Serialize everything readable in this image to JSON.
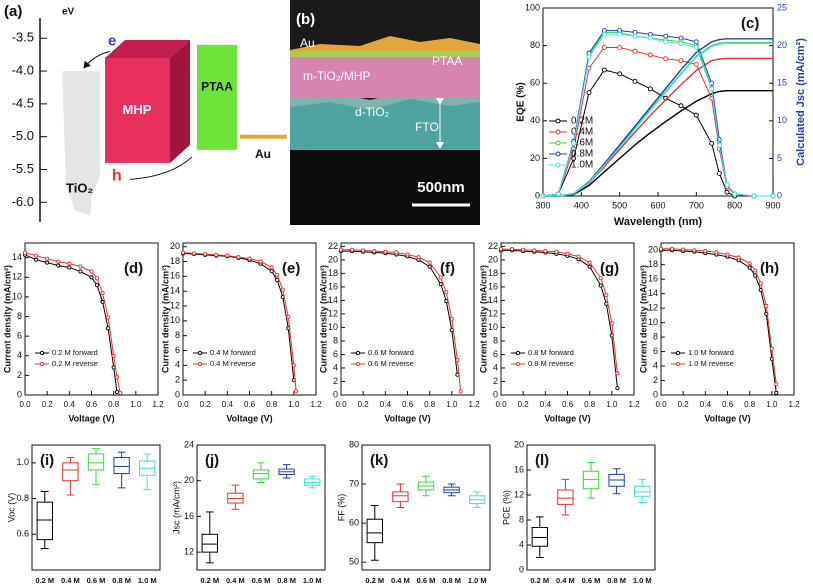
{
  "panel_a": {
    "label": "(a)",
    "unit": "eV",
    "ylim": [
      -6.3,
      -3.1
    ],
    "yticks": [
      -3.5,
      {
        "value": -4,
        "label": "-4.0"
      },
      -4.5,
      {
        "value": -5,
        "label": "-5.0"
      },
      -5.5,
      {
        "value": -6,
        "label": "-6.0"
      }
    ],
    "tio2": {
      "name": "TiO₂",
      "top": -4.0,
      "bottom": -6.2
    },
    "mhp": {
      "name": "MHP",
      "top": -3.8,
      "bottom": -5.4
    },
    "ptaa": {
      "name": "PTAA",
      "top": -3.6,
      "bottom": -5.2
    },
    "au": {
      "name": "Au",
      "level": -5.0
    },
    "electron": "e",
    "hole": "h"
  },
  "panel_b": {
    "label": "(b)",
    "layers": [
      "Au",
      "PTAA",
      "m-TiO₂/MHP",
      "d-TiO₂",
      "FTO"
    ],
    "scale_bar": "500nm"
  },
  "chart_data": [
    {
      "type": "line",
      "label": "(c)",
      "xlabel": "Wavelength (nm)",
      "ylabel": "EQE (%)",
      "y2label": "Calculated Jsc (mA/cm²)",
      "x": [
        300,
        340,
        380,
        420,
        460,
        500,
        540,
        580,
        620,
        660,
        700,
        740,
        760,
        780,
        800,
        850,
        900
      ],
      "xlim": [
        300,
        900
      ],
      "xticks": [
        300,
        400,
        500,
        600,
        700,
        800,
        900
      ],
      "ylim": [
        0,
        100
      ],
      "yticks": [
        0,
        20,
        40,
        60,
        80,
        100
      ],
      "y2lim": [
        0,
        25
      ],
      "y2ticks": [
        0,
        5,
        10,
        15,
        20,
        25
      ],
      "legend": "left",
      "series": [
        {
          "name": "0.2M",
          "color": "#000000",
          "values": [
            0,
            1,
            20,
            55,
            67,
            65,
            61,
            57,
            52,
            48,
            43,
            28,
            12,
            2,
            0,
            0,
            0
          ]
        },
        {
          "name": "0.4M",
          "color": "#e8312f",
          "values": [
            0,
            1,
            25,
            68,
            79,
            79,
            77,
            75,
            73,
            72,
            70,
            52,
            25,
            5,
            1,
            0,
            0
          ]
        },
        {
          "name": "0.6M",
          "color": "#3fd13f",
          "values": [
            0,
            1,
            28,
            75,
            87,
            87,
            85,
            84,
            83,
            82,
            80,
            58,
            28,
            6,
            1,
            0,
            0
          ]
        },
        {
          "name": "0.8M",
          "color": "#1f3fb0",
          "values": [
            0,
            1,
            29,
            76,
            88,
            88,
            87,
            86,
            85,
            84,
            82,
            60,
            30,
            6,
            1,
            0,
            0
          ]
        },
        {
          "name": "1.0M",
          "color": "#3fe0e0",
          "values": [
            0,
            1,
            28,
            74,
            86,
            86,
            85,
            84,
            82,
            81,
            79,
            57,
            27,
            6,
            1,
            0,
            0
          ]
        }
      ],
      "jsc_series": [
        {
          "axis": "y2",
          "values": [
            0,
            0,
            0.2,
            1.4,
            3.2,
            5.0,
            6.8,
            8.4,
            9.9,
            11.3,
            12.6,
            13.6,
            13.9,
            14.0,
            14.0,
            14.0,
            14.0
          ]
        },
        {
          "axis": "y2",
          "values": [
            0,
            0,
            0.3,
            1.7,
            3.9,
            6.2,
            8.5,
            10.7,
            12.8,
            14.8,
            16.7,
            18.0,
            18.2,
            18.3,
            18.3,
            18.3,
            18.3
          ]
        },
        {
          "axis": "y2",
          "values": [
            0,
            0,
            0.3,
            1.8,
            4.1,
            6.6,
            9.0,
            11.5,
            13.9,
            16.3,
            18.6,
            20.0,
            20.3,
            20.4,
            20.4,
            20.4,
            20.4
          ]
        },
        {
          "axis": "y2",
          "values": [
            0,
            0,
            0.3,
            1.9,
            4.3,
            6.8,
            9.3,
            11.8,
            14.3,
            16.8,
            19.1,
            20.5,
            20.8,
            20.9,
            20.9,
            20.9,
            20.9
          ]
        },
        {
          "axis": "y2",
          "values": [
            0,
            0,
            0.3,
            1.8,
            4.1,
            6.5,
            8.9,
            11.4,
            13.8,
            16.2,
            18.5,
            19.9,
            20.2,
            20.3,
            20.3,
            20.3,
            20.3
          ]
        }
      ]
    },
    {
      "type": "jv",
      "label": "(d)",
      "xlabel": "Voltage (V)",
      "ylabel": "Current density (mA/cm²)",
      "x": [
        0,
        0.1,
        0.2,
        0.3,
        0.4,
        0.5,
        0.6,
        0.65,
        0.7,
        0.75,
        0.8,
        0.83,
        0.86
      ],
      "xlim": [
        0,
        1.2
      ],
      "xticks": [
        {
          "value": 0,
          "label": "0.0"
        },
        0.2,
        0.4,
        0.6,
        0.8,
        {
          "value": 1,
          "label": "1.0"
        },
        1.2
      ],
      "ylim": [
        0,
        15.5
      ],
      "yticks": [
        0,
        2,
        4,
        6,
        8,
        10,
        12,
        14
      ],
      "series": [
        {
          "name": "0.2 M forward",
          "color": "#000000",
          "values": [
            14.3,
            13.8,
            13.5,
            13.2,
            13.0,
            12.6,
            12.0,
            11.2,
            9.5,
            6.8,
            2.8,
            0.3,
            null
          ]
        },
        {
          "name": "0.2 M reverse",
          "color": "#e8312f",
          "values": [
            14.5,
            14.2,
            13.9,
            13.6,
            13.4,
            13.1,
            12.6,
            11.9,
            10.4,
            7.9,
            4.0,
            1.8,
            0.2
          ]
        }
      ]
    },
    {
      "type": "jv",
      "label": "(e)",
      "xlabel": "Voltage (V)",
      "ylabel": "Current density (mA/cm²)",
      "x": [
        0,
        0.1,
        0.2,
        0.3,
        0.4,
        0.5,
        0.6,
        0.7,
        0.8,
        0.85,
        0.9,
        0.95,
        1.0,
        1.02
      ],
      "xlim": [
        0,
        1.2
      ],
      "xticks": [
        {
          "value": 0,
          "label": "0.0"
        },
        0.2,
        0.4,
        0.6,
        0.8,
        {
          "value": 1,
          "label": "1.0"
        },
        1.2
      ],
      "ylim": [
        0,
        20.5
      ],
      "yticks": [
        0,
        2,
        4,
        6,
        8,
        10,
        12,
        14,
        16,
        18,
        20
      ],
      "series": [
        {
          "name": "0.4 M forward",
          "color": "#000000",
          "values": [
            19.1,
            19.0,
            18.9,
            18.8,
            18.7,
            18.5,
            18.2,
            17.7,
            16.7,
            15.5,
            13.2,
            9.0,
            2.0,
            null
          ]
        },
        {
          "name": "0.4 M reverse",
          "color": "#e8312f",
          "values": [
            19.2,
            19.1,
            19.0,
            18.9,
            18.8,
            18.6,
            18.4,
            18.0,
            17.2,
            16.2,
            14.2,
            10.5,
            4.0,
            0.5
          ]
        }
      ]
    },
    {
      "type": "jv",
      "label": "(f)",
      "xlabel": "Voltage (V)",
      "ylabel": "Current density (mA/cm²)",
      "x": [
        0,
        0.1,
        0.2,
        0.3,
        0.4,
        0.5,
        0.6,
        0.7,
        0.8,
        0.9,
        0.95,
        1.0,
        1.05,
        1.08
      ],
      "xlim": [
        0,
        1.2
      ],
      "xticks": [
        {
          "value": 0,
          "label": "0.0"
        },
        0.2,
        0.4,
        0.6,
        0.8,
        {
          "value": 1,
          "label": "1.0"
        },
        1.2
      ],
      "ylim": [
        0,
        22.5
      ],
      "yticks": [
        0,
        2,
        4,
        6,
        8,
        10,
        12,
        14,
        16,
        18,
        20,
        22
      ],
      "series": [
        {
          "name": "0.6 M forward",
          "color": "#000000",
          "values": [
            21.3,
            21.3,
            21.2,
            21.1,
            21.0,
            20.8,
            20.5,
            20.0,
            19.0,
            16.4,
            13.9,
            9.6,
            3.0,
            null
          ]
        },
        {
          "name": "0.6 M reverse",
          "color": "#e8312f",
          "values": [
            21.5,
            21.5,
            21.4,
            21.3,
            21.2,
            21.1,
            20.8,
            20.4,
            19.6,
            17.4,
            15.2,
            11.3,
            5.2,
            0.5
          ]
        }
      ]
    },
    {
      "type": "jv",
      "label": "(g)",
      "xlabel": "Voltage (V)",
      "ylabel": "Current density (mA/cm²)",
      "x": [
        0,
        0.1,
        0.2,
        0.3,
        0.4,
        0.5,
        0.6,
        0.7,
        0.8,
        0.9,
        0.95,
        1.0,
        1.05,
        1.08
      ],
      "xlim": [
        0,
        1.2
      ],
      "xticks": [
        {
          "value": 0,
          "label": "0.0"
        },
        0.2,
        0.4,
        0.6,
        0.8,
        {
          "value": 1,
          "label": "1.0"
        },
        1.2
      ],
      "ylim": [
        0,
        22.5
      ],
      "yticks": [
        0,
        2,
        4,
        6,
        8,
        10,
        12,
        14,
        16,
        18,
        20,
        22
      ],
      "series": [
        {
          "name": "0.8 M forward",
          "color": "#000000",
          "values": [
            21.4,
            21.4,
            21.3,
            21.2,
            21.1,
            20.9,
            20.6,
            20.1,
            19.0,
            16.2,
            13.5,
            8.8,
            1.0,
            null
          ]
        },
        {
          "name": "0.8 M reverse",
          "color": "#e8312f",
          "values": [
            21.6,
            21.6,
            21.5,
            21.4,
            21.3,
            21.2,
            20.9,
            20.5,
            19.6,
            17.3,
            14.8,
            10.6,
            3.2,
            null
          ]
        }
      ]
    },
    {
      "type": "jv",
      "label": "(h)",
      "xlabel": "Voltage (V)",
      "ylabel": "Current density (mA/cm²)",
      "x": [
        0,
        0.1,
        0.2,
        0.3,
        0.4,
        0.5,
        0.6,
        0.7,
        0.8,
        0.85,
        0.9,
        0.95,
        1.0,
        1.04
      ],
      "xlim": [
        0,
        1.2
      ],
      "xticks": [
        {
          "value": 0,
          "label": "0.0"
        },
        0.2,
        0.4,
        0.6,
        0.8,
        {
          "value": 1,
          "label": "1.0"
        },
        1.2
      ],
      "ylim": [
        0,
        21
      ],
      "yticks": [
        0,
        2,
        4,
        6,
        8,
        10,
        12,
        14,
        16,
        18,
        20
      ],
      "series": [
        {
          "name": "1.0 M forward",
          "color": "#000000",
          "values": [
            20.0,
            20.0,
            19.9,
            19.8,
            19.6,
            19.4,
            19.1,
            18.6,
            17.6,
            16.5,
            14.5,
            11.2,
            5.0,
            0.3
          ]
        },
        {
          "name": "1.0 M reverse",
          "color": "#e8312f",
          "values": [
            20.2,
            20.2,
            20.1,
            20.0,
            19.9,
            19.7,
            19.4,
            19.0,
            18.2,
            17.2,
            15.4,
            12.3,
            6.4,
            1.5
          ]
        }
      ]
    },
    {
      "type": "box",
      "label": "(i)",
      "ylabel": "Voc (V)",
      "categories": [
        "0.2 M",
        "0.4 M",
        "0.6 M",
        "0.8 M",
        "1.0 M"
      ],
      "colors": [
        "#000000",
        "#e8312f",
        "#3fd13f",
        "#1f3fb0",
        "#3fe0e0"
      ],
      "ylim": [
        0.4,
        1.1
      ],
      "yticks": [
        0.6,
        0.8,
        {
          "value": 1,
          "label": "1.0"
        }
      ],
      "boxes": [
        {
          "whisker_low": 0.52,
          "q1": 0.57,
          "median": 0.68,
          "q3": 0.78,
          "whisker_high": 0.84
        },
        {
          "whisker_low": 0.82,
          "q1": 0.9,
          "median": 0.96,
          "q3": 1.0,
          "whisker_high": 1.03
        },
        {
          "whisker_low": 0.88,
          "q1": 0.96,
          "median": 1.0,
          "q3": 1.05,
          "whisker_high": 1.08
        },
        {
          "whisker_low": 0.86,
          "q1": 0.94,
          "median": 0.98,
          "q3": 1.03,
          "whisker_high": 1.06
        },
        {
          "whisker_low": 0.85,
          "q1": 0.93,
          "median": 0.97,
          "q3": 1.01,
          "whisker_high": 1.05
        }
      ]
    },
    {
      "type": "box",
      "label": "(j)",
      "ylabel": "Jsc (mA/cm²)",
      "categories": [
        "0.2 M",
        "0.4 M",
        "0.6 M",
        "0.8 M",
        "1.0 M"
      ],
      "colors": [
        "#000000",
        "#e8312f",
        "#3fd13f",
        "#1f3fb0",
        "#3fe0e0"
      ],
      "ylim": [
        10,
        24
      ],
      "yticks": [
        12,
        16,
        20,
        24
      ],
      "boxes": [
        {
          "whisker_low": 10.8,
          "q1": 12.0,
          "median": 12.9,
          "q3": 14.0,
          "whisker_high": 16.5
        },
        {
          "whisker_low": 16.8,
          "q1": 17.5,
          "median": 18.0,
          "q3": 18.6,
          "whisker_high": 19.5
        },
        {
          "whisker_low": 19.8,
          "q1": 20.2,
          "median": 20.8,
          "q3": 21.2,
          "whisker_high": 22.0
        },
        {
          "whisker_low": 20.3,
          "q1": 20.7,
          "median": 21.0,
          "q3": 21.3,
          "whisker_high": 21.8
        },
        {
          "whisker_low": 19.2,
          "q1": 19.5,
          "median": 19.8,
          "q3": 20.2,
          "whisker_high": 20.5
        }
      ]
    },
    {
      "type": "box",
      "label": "(k)",
      "ylabel": "FF (%)",
      "categories": [
        "0.2 M",
        "0.4 M",
        "0.6 M",
        "0.8 M",
        "1.0 M"
      ],
      "colors": [
        "#000000",
        "#e8312f",
        "#3fd13f",
        "#1f3fb0",
        "#3fe0e0"
      ],
      "ylim": [
        48,
        80
      ],
      "yticks": [
        50,
        60,
        70,
        80
      ],
      "boxes": [
        {
          "whisker_low": 50.5,
          "q1": 55,
          "median": 57.5,
          "q3": 61,
          "whisker_high": 64.5
        },
        {
          "whisker_low": 64,
          "q1": 65.5,
          "median": 67,
          "q3": 68,
          "whisker_high": 70
        },
        {
          "whisker_low": 67,
          "q1": 68.5,
          "median": 69.5,
          "q3": 70.5,
          "whisker_high": 72
        },
        {
          "whisker_low": 67,
          "q1": 67.8,
          "median": 68.5,
          "q3": 69.2,
          "whisker_high": 70
        },
        {
          "whisker_low": 64,
          "q1": 65,
          "median": 66,
          "q3": 67,
          "whisker_high": 68
        }
      ]
    },
    {
      "type": "box",
      "label": "(l)",
      "ylabel": "PCE (%)",
      "categories": [
        "0.2 M",
        "0.4 M",
        "0.6 M",
        "0.8 M",
        "1.0 M"
      ],
      "colors": [
        "#000000",
        "#e8312f",
        "#3fd13f",
        "#1f3fb0",
        "#3fe0e0"
      ],
      "ylim": [
        0,
        20
      ],
      "yticks": [
        0,
        4,
        8,
        12,
        16,
        20
      ],
      "boxes": [
        {
          "whisker_low": 2,
          "q1": 3.8,
          "median": 5.2,
          "q3": 6.8,
          "whisker_high": 8.5
        },
        {
          "whisker_low": 8.8,
          "q1": 10.5,
          "median": 11.5,
          "q3": 12.8,
          "whisker_high": 14.5
        },
        {
          "whisker_low": 11.5,
          "q1": 13.0,
          "median": 14.5,
          "q3": 15.8,
          "whisker_high": 17.2
        },
        {
          "whisker_low": 12.2,
          "q1": 13.4,
          "median": 14.4,
          "q3": 15.3,
          "whisker_high": 16.2
        },
        {
          "whisker_low": 10.8,
          "q1": 11.8,
          "median": 12.5,
          "q3": 13.4,
          "whisker_high": 14.5
        }
      ]
    }
  ]
}
